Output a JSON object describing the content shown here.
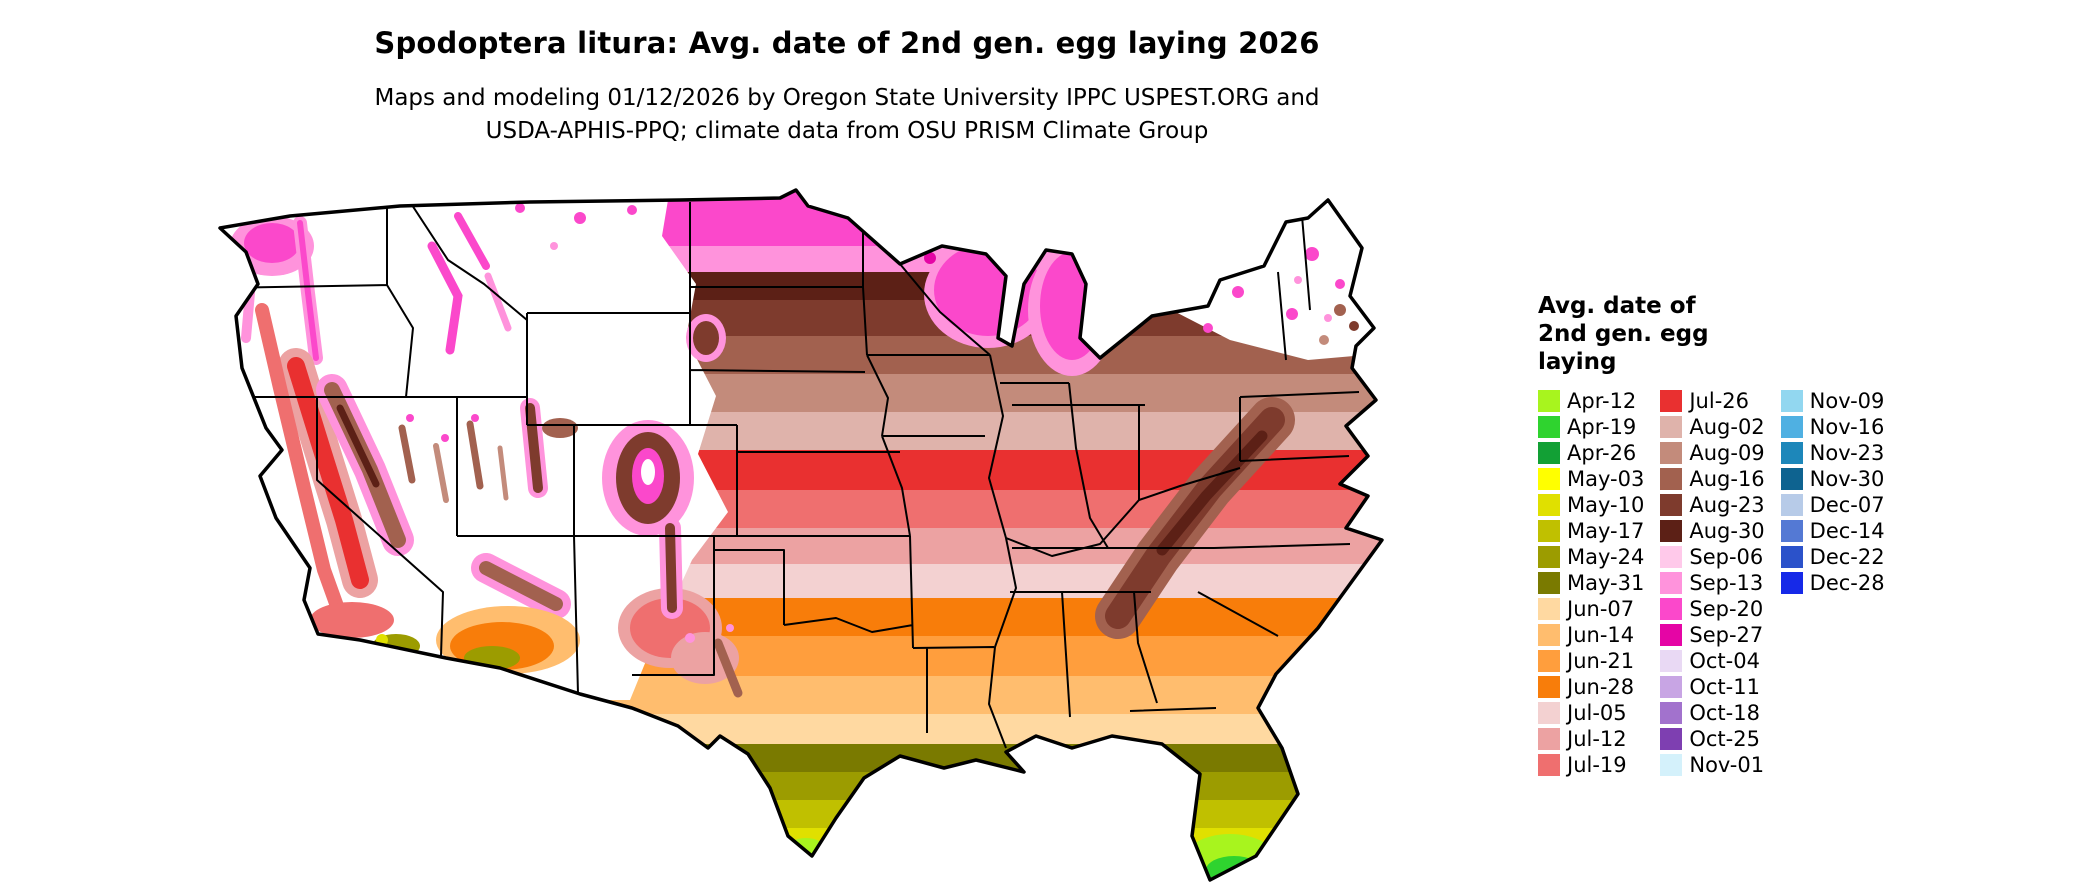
{
  "page": {
    "title": "Spodoptera litura: Avg. date of 2nd gen. egg laying 2026",
    "subtitle_line1": "Maps and modeling 01/12/2026 by Oregon State University IPPC USPEST.ORG and",
    "subtitle_line2": "USDA-APHIS-PPQ; climate data from OSU PRISM Climate Group"
  },
  "legend": {
    "title_lines": [
      "Avg. date of",
      "2nd gen. egg",
      "laying"
    ],
    "columns": [
      [
        {
          "label": "Apr-12",
          "color": "#a8f41e"
        },
        {
          "label": "Apr-19",
          "color": "#2fd32f"
        },
        {
          "label": "Apr-26",
          "color": "#12a035"
        },
        {
          "label": "May-03",
          "color": "#ffff00"
        },
        {
          "label": "May-10",
          "color": "#e0e000"
        },
        {
          "label": "May-17",
          "color": "#c0c000"
        },
        {
          "label": "May-24",
          "color": "#9c9c00"
        },
        {
          "label": "May-31",
          "color": "#7a7a00"
        },
        {
          "label": "Jun-07",
          "color": "#ffd9a1"
        },
        {
          "label": "Jun-14",
          "color": "#ffbd6e"
        },
        {
          "label": "Jun-21",
          "color": "#ff9e3d"
        },
        {
          "label": "Jun-28",
          "color": "#f87d0a"
        },
        {
          "label": "Jul-05",
          "color": "#f3d1d1"
        },
        {
          "label": "Jul-12",
          "color": "#eca2a2"
        },
        {
          "label": "Jul-19",
          "color": "#ef6f6f"
        }
      ],
      [
        {
          "label": "Jul-26",
          "color": "#e93030"
        },
        {
          "label": "Aug-02",
          "color": "#dfb3ab"
        },
        {
          "label": "Aug-09",
          "color": "#c38b7b"
        },
        {
          "label": "Aug-16",
          "color": "#a2614f"
        },
        {
          "label": "Aug-23",
          "color": "#7e3b2d"
        },
        {
          "label": "Aug-30",
          "color": "#5c2016"
        },
        {
          "label": "Sep-06",
          "color": "#ffc9ea"
        },
        {
          "label": "Sep-13",
          "color": "#ff93dc"
        },
        {
          "label": "Sep-20",
          "color": "#fb48cb"
        },
        {
          "label": "Sep-27",
          "color": "#e505a5"
        },
        {
          "label": "Oct-04",
          "color": "#e9d9f4"
        },
        {
          "label": "Oct-11",
          "color": "#c8a5e4"
        },
        {
          "label": "Oct-18",
          "color": "#a272cd"
        },
        {
          "label": "Oct-25",
          "color": "#7e3fb1"
        },
        {
          "label": "Nov-01",
          "color": "#d4f1fb"
        }
      ],
      [
        {
          "label": "Nov-09",
          "color": "#92d7f0"
        },
        {
          "label": "Nov-16",
          "color": "#4fb0e2"
        },
        {
          "label": "Nov-23",
          "color": "#1d87ba"
        },
        {
          "label": "Nov-30",
          "color": "#0e6390"
        },
        {
          "label": "Dec-07",
          "color": "#b7cbe8"
        },
        {
          "label": "Dec-14",
          "color": "#5479d4"
        },
        {
          "label": "Dec-22",
          "color": "#2b52ca"
        },
        {
          "label": "Dec-28",
          "color": "#1629e8"
        }
      ]
    ]
  },
  "map": {
    "description": "Continental US raster map colored by average date of 2nd generation egg laying for Spodoptera litura, 2026 model run",
    "no_data_color": "#ffffff",
    "regions": [
      {
        "area": "Northern Plains and Upper Midwest (ND, MN, WI, MI)",
        "date_range": "Sep-13 to Sep-27"
      },
      {
        "area": "Central Midwest and Ohio Valley (SD, NE, IA, IL, IN, OH) and central Appalachians",
        "date_range": "Aug-09 to Aug-30"
      },
      {
        "area": "Kansas, Missouri, Kentucky, Tennessee, Virginia belt",
        "date_range": "Jul-12 to Jul-26"
      },
      {
        "area": "Oklahoma, Arkansas, northern Texas, Carolinas coastal plain",
        "date_range": "Jun-28 to Jul-05"
      },
      {
        "area": "Central Texas and Gulf Coast states",
        "date_range": "Jun-07 to Jun-28"
      },
      {
        "area": "Southern Texas and central Florida",
        "date_range": "May-03 to May-31"
      },
      {
        "area": "Rio Grande Valley and southern Florida tip",
        "date_range": "Apr-12 to Apr-26"
      },
      {
        "area": "High-elevation Mountain West, northern New England, northern New York",
        "date_range": "no data (white)"
      },
      {
        "area": "California Central Valley and coastal California",
        "date_range": "Jul-12 to Jul-26"
      },
      {
        "area": "Desert Southwest (southern Arizona)",
        "date_range": "May-24 to Jun-28"
      }
    ]
  }
}
